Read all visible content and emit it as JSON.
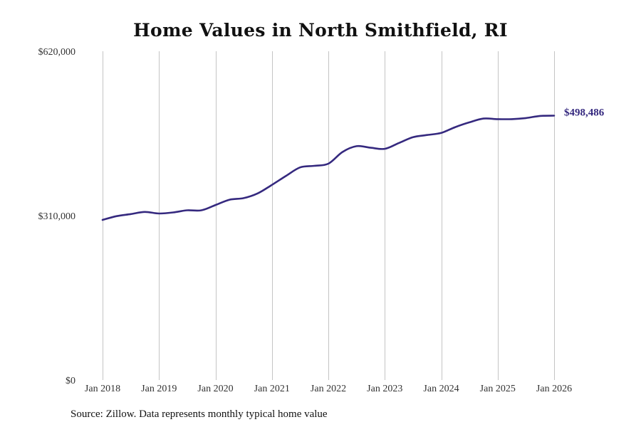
{
  "chart_data": {
    "type": "line",
    "title": "Home Values in North Smithfield, RI",
    "source": "Source: Zillow. Data represents monthly typical home value",
    "ylim": [
      0,
      620000
    ],
    "xlim": [
      2018.0,
      2026.0
    ],
    "y_ticks": [
      {
        "value": 620000,
        "label": "$620,000"
      },
      {
        "value": 310000,
        "label": "$310,000"
      },
      {
        "value": 0,
        "label": "$0"
      }
    ],
    "x_ticks": [
      {
        "value": 2018,
        "label": "Jan 2018"
      },
      {
        "value": 2019,
        "label": "Jan 2019"
      },
      {
        "value": 2020,
        "label": "Jan 2020"
      },
      {
        "value": 2021,
        "label": "Jan 2021"
      },
      {
        "value": 2022,
        "label": "Jan 2022"
      },
      {
        "value": 2023,
        "label": "Jan 2023"
      },
      {
        "value": 2024,
        "label": "Jan 2024"
      },
      {
        "value": 2025,
        "label": "Jan 2025"
      },
      {
        "value": 2026,
        "label": "Jan 2026"
      }
    ],
    "grid": "vertical",
    "line_color": "#35297f",
    "series": [
      {
        "name": "Typical home value",
        "points": [
          [
            2018.0,
            302000
          ],
          [
            2018.25,
            309000
          ],
          [
            2018.5,
            313000
          ],
          [
            2018.75,
            317000
          ],
          [
            2019.0,
            314000
          ],
          [
            2019.25,
            316000
          ],
          [
            2019.5,
            320000
          ],
          [
            2019.75,
            320000
          ],
          [
            2020.0,
            330000
          ],
          [
            2020.25,
            340000
          ],
          [
            2020.5,
            343000
          ],
          [
            2020.75,
            352000
          ],
          [
            2021.0,
            368000
          ],
          [
            2021.25,
            385000
          ],
          [
            2021.5,
            401000
          ],
          [
            2021.75,
            404000
          ],
          [
            2022.0,
            408000
          ],
          [
            2022.25,
            430000
          ],
          [
            2022.5,
            441000
          ],
          [
            2022.75,
            438000
          ],
          [
            2023.0,
            436000
          ],
          [
            2023.25,
            447000
          ],
          [
            2023.5,
            458000
          ],
          [
            2023.75,
            462000
          ],
          [
            2024.0,
            466000
          ],
          [
            2024.25,
            477000
          ],
          [
            2024.5,
            486000
          ],
          [
            2024.75,
            493000
          ],
          [
            2025.0,
            492000
          ],
          [
            2025.25,
            492000
          ],
          [
            2025.5,
            494000
          ],
          [
            2025.75,
            498000
          ],
          [
            2026.0,
            498486
          ]
        ]
      }
    ],
    "end_label": "$498,486"
  }
}
